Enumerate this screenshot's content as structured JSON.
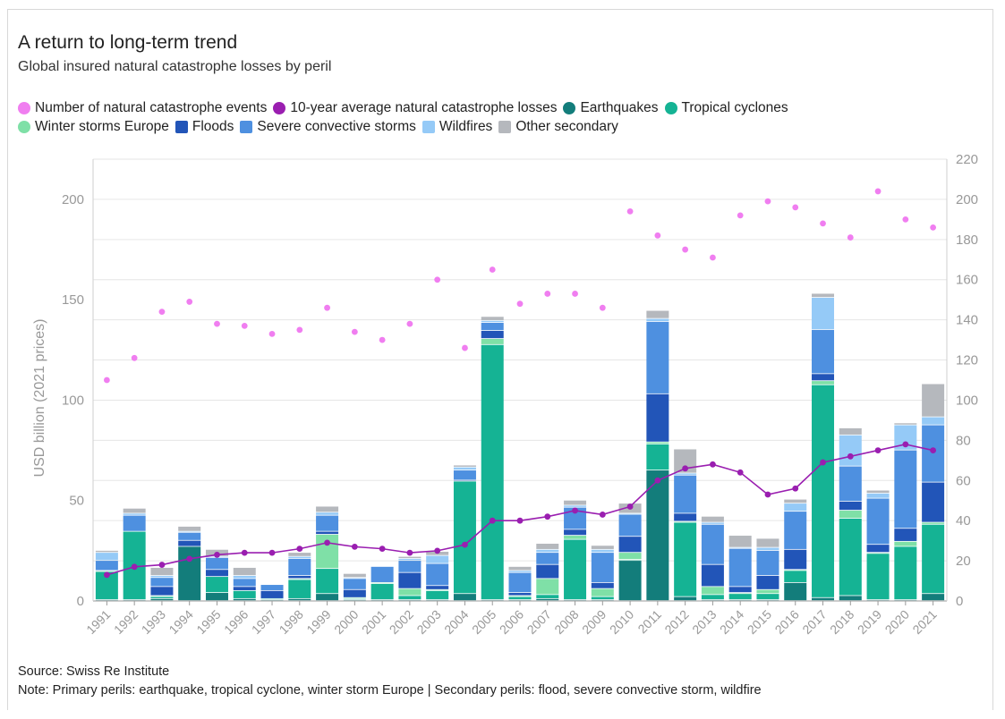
{
  "header": {
    "title": "A return to long-term trend",
    "subtitle": "Global insured natural catastrophe losses by peril"
  },
  "legend": {
    "row1": [
      {
        "key": "events",
        "label": "Number of natural catastrophe events",
        "color": "#f07ef0",
        "shape": "dot"
      },
      {
        "key": "avg",
        "label": "10-year average natural catastrophe losses",
        "color": "#9a1eb0",
        "shape": "dot"
      },
      {
        "key": "earthquakes",
        "label": "Earthquakes",
        "color": "#137d7b",
        "shape": "dot"
      },
      {
        "key": "tropical",
        "label": "Tropical cyclones",
        "color": "#15b394",
        "shape": "dot"
      }
    ],
    "row2": [
      {
        "key": "winter",
        "label": "Winter storms Europe",
        "color": "#7fe0a7",
        "shape": "dot"
      },
      {
        "key": "floods",
        "label": "Floods",
        "color": "#2255b8",
        "shape": "sq"
      },
      {
        "key": "convective",
        "label": "Severe convective storms",
        "color": "#4e90e0",
        "shape": "sq"
      },
      {
        "key": "wildfires",
        "label": "Wildfires",
        "color": "#95caf7",
        "shape": "sq"
      },
      {
        "key": "other",
        "label": "Other secondary",
        "color": "#b5b8bd",
        "shape": "sq"
      }
    ]
  },
  "footer": {
    "source": "Source: Swiss Re Institute",
    "note": "Note: Primary perils: earthquake, tropical cyclone, winter storm Europe | Secondary perils: flood, severe convective storm, wildfire"
  },
  "chart_data": {
    "type": "bar",
    "stacked": true,
    "ylabel": "USD billion (2021 prices)",
    "ylim": [
      0,
      220
    ],
    "yticks": [
      0,
      50,
      100,
      150,
      200
    ],
    "y2lim": [
      0,
      220
    ],
    "y2ticks": [
      0,
      20,
      40,
      60,
      80,
      100,
      120,
      140,
      160,
      180,
      200,
      220
    ],
    "categories": [
      "1991",
      "1992",
      "1993",
      "1994",
      "1995",
      "1996",
      "1997",
      "1998",
      "1999",
      "2000",
      "2001",
      "2002",
      "2003",
      "2004",
      "2005",
      "2006",
      "2007",
      "2008",
      "2009",
      "2010",
      "2011",
      "2012",
      "2013",
      "2014",
      "2015",
      "2016",
      "2017",
      "2018",
      "2019",
      "2020",
      "2021"
    ],
    "series": [
      {
        "key": "earthquakes",
        "name": "Earthquakes",
        "color": "#137d7b",
        "values": [
          0.5,
          0.5,
          1,
          27,
          4,
          1,
          0.5,
          1,
          3.5,
          0.5,
          0.5,
          0.5,
          0.5,
          3.5,
          0.5,
          0.5,
          1,
          0.5,
          0.5,
          20,
          65,
          2,
          0.5,
          0.5,
          0.5,
          9,
          1.5,
          2.5,
          0.5,
          0.5,
          3.5
        ]
      },
      {
        "key": "tropical",
        "name": "Tropical cyclones",
        "color": "#15b394",
        "values": [
          14,
          34,
          1,
          0,
          8,
          4,
          0.5,
          9.5,
          12.5,
          0.5,
          8,
          2,
          4.5,
          56,
          127,
          1.5,
          2,
          30,
          1.5,
          0.5,
          13,
          37,
          2.5,
          3,
          3,
          6,
          106,
          38.5,
          23,
          26.5,
          34.5
        ]
      },
      {
        "key": "winter",
        "name": "Winter storms Europe",
        "color": "#7fe0a7",
        "values": [
          0.5,
          0,
          0.5,
          0,
          0,
          0,
          0,
          0.5,
          17,
          0.5,
          0.5,
          3.5,
          0.5,
          0,
          3,
          0.5,
          8,
          2,
          4,
          3.5,
          1,
          0.5,
          4,
          0.5,
          2,
          0.5,
          2,
          4,
          0.5,
          2.5,
          1
        ]
      },
      {
        "key": "floods",
        "name": "Floods",
        "color": "#2255b8",
        "values": [
          0,
          0,
          4.5,
          3,
          3.5,
          2,
          4,
          1.5,
          1.5,
          4,
          0,
          8,
          2,
          0.5,
          4,
          1.5,
          7,
          3,
          3,
          8,
          24,
          4,
          11,
          3,
          7,
          10,
          3.5,
          4.5,
          4,
          6.5,
          20
        ]
      },
      {
        "key": "convective",
        "name": "Severe convective storms",
        "color": "#4e90e0",
        "values": [
          5,
          8,
          4.5,
          4,
          6,
          4,
          3,
          8.5,
          8,
          5.5,
          8,
          6,
          11,
          5,
          4,
          10,
          6,
          11,
          15,
          11,
          36,
          19,
          20,
          19,
          12.5,
          19,
          22,
          17.5,
          23,
          39,
          28.5
        ]
      },
      {
        "key": "wildfires",
        "name": "Wildfires",
        "color": "#95caf7",
        "values": [
          4,
          1,
          1,
          0.5,
          0.5,
          1.5,
          0,
          1,
          1.5,
          0.5,
          0,
          1,
          4,
          1.5,
          1,
          1,
          1.5,
          1,
          1.5,
          0.5,
          1.5,
          1,
          1,
          0.5,
          1.5,
          4,
          16,
          15.5,
          2.5,
          12.5,
          4
        ]
      },
      {
        "key": "other",
        "name": "Other secondary",
        "color": "#b5b8bd",
        "values": [
          1,
          2.5,
          4,
          2.5,
          3.5,
          4,
          0,
          2,
          3,
          2,
          0,
          1,
          2,
          1,
          2,
          2,
          3,
          2.5,
          2,
          5,
          4,
          12,
          3,
          6,
          4.5,
          2,
          2,
          3.5,
          1.5,
          1,
          16.5
        ]
      }
    ],
    "events": {
      "name": "Number of natural catastrophe events",
      "color": "#f07ef0",
      "axis": "right",
      "values": [
        110,
        121,
        144,
        149,
        138,
        137,
        133,
        135,
        146,
        134,
        130,
        138,
        160,
        126,
        165,
        148,
        153,
        153,
        146,
        194,
        182,
        175,
        171,
        192,
        199,
        196,
        188,
        181,
        204,
        190,
        186
      ]
    },
    "ten_year_avg": {
      "name": "10-year average natural catastrophe losses",
      "color": "#9a1eb0",
      "axis": "right",
      "values": [
        13,
        17,
        18,
        21,
        23,
        24,
        24,
        26,
        29,
        27,
        26,
        24,
        25,
        28,
        40,
        40,
        42,
        45,
        43,
        47,
        60,
        66,
        68,
        64,
        53,
        56,
        69,
        72,
        75,
        78,
        75
      ]
    }
  }
}
